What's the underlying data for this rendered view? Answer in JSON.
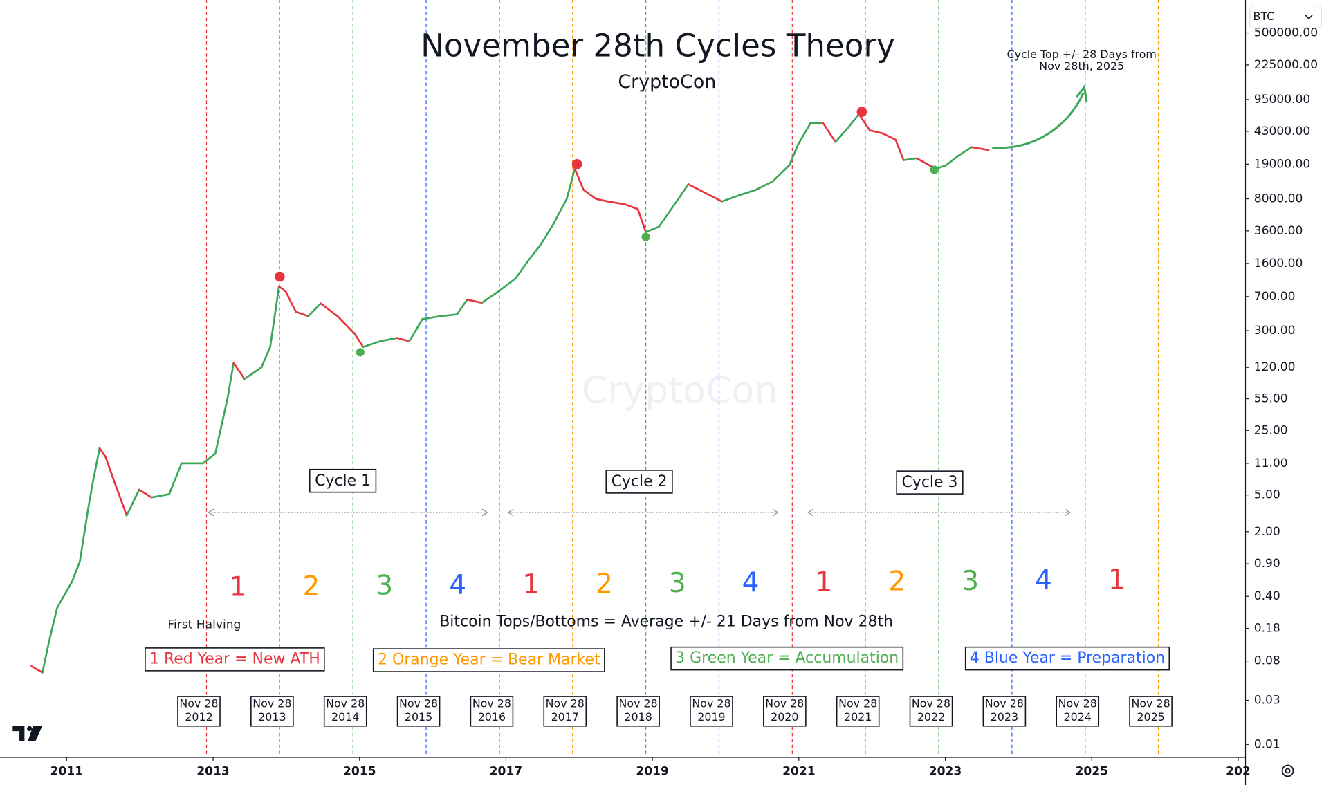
{
  "chart_data": {
    "type": "line",
    "title": "November 28th Cycles Theory",
    "subtitle": "CryptoCon",
    "watermark": "CryptoCon",
    "symbol": "BTC",
    "log_scale": true,
    "xlim": [
      2010.09,
      2027.1
    ],
    "xticks": [
      2011,
      2013,
      2015,
      2017,
      2019,
      2021,
      2023,
      2025,
      {
        "value": 2027,
        "label": "202"
      }
    ],
    "ylim": [
      0.0074,
      1135000
    ],
    "yticks": [
      0.01,
      0.03,
      0.08,
      0.18,
      {
        "value": 0.4,
        "label": "0.40"
      },
      {
        "value": 0.9,
        "label": "0.90"
      },
      {
        "value": 2,
        "label": "2.00"
      },
      {
        "value": 5,
        "label": "5.00"
      },
      {
        "value": 11,
        "label": "11.00"
      },
      {
        "value": 25,
        "label": "25.00"
      },
      {
        "value": 55,
        "label": "55.00"
      },
      {
        "value": 120,
        "label": "120.00"
      },
      {
        "value": 300,
        "label": "300.00"
      },
      {
        "value": 700,
        "label": "700.00"
      },
      {
        "value": 1600,
        "label": "1600.00"
      },
      {
        "value": 3600,
        "label": "3600.00"
      },
      {
        "value": 8000,
        "label": "8000.00"
      },
      {
        "value": 19000,
        "label": "19000.00"
      },
      {
        "value": 43000,
        "label": "43000.00"
      },
      {
        "value": 95000,
        "label": "95000.00"
      },
      {
        "value": 225000,
        "label": "225000.00"
      },
      {
        "value": 500000,
        "label": "500000.00"
      }
    ],
    "x": [
      2010.52,
      2010.67,
      2010.76,
      2010.87,
      2011.07,
      2011.18,
      2011.3,
      2011.36,
      2011.45,
      2011.53,
      2011.65,
      2011.82,
      2011.99,
      2012.16,
      2012.4,
      2012.57,
      2012.86,
      2013.03,
      2013.2,
      2013.28,
      2013.43,
      2013.66,
      2013.78,
      2013.9,
      2013.99,
      2014.13,
      2014.3,
      2014.47,
      2014.7,
      2014.93,
      2015.05,
      2015.28,
      2015.51,
      2015.68,
      2015.86,
      2016.1,
      2016.33,
      2016.47,
      2016.67,
      2016.9,
      2017.13,
      2017.3,
      2017.48,
      2017.65,
      2017.83,
      2017.94,
      2018.06,
      2018.23,
      2018.39,
      2018.62,
      2018.8,
      2018.91,
      2019.09,
      2019.32,
      2019.49,
      2019.72,
      2019.95,
      2020.18,
      2020.41,
      2020.64,
      2020.87,
      2020.99,
      2021.16,
      2021.33,
      2021.5,
      2021.68,
      2021.82,
      2021.97,
      2022.14,
      2022.32,
      2022.43,
      2022.61,
      2022.78,
      2022.87,
      2023.01,
      2023.18,
      2023.36,
      2023.59
    ],
    "series": [
      {
        "up_color": "#3aa757",
        "down_color": "#e8343f",
        "values": [
          0.07,
          0.06,
          0.13,
          0.3,
          0.57,
          0.95,
          3.8,
          7,
          16,
          13,
          7,
          3,
          5.7,
          4.7,
          5.1,
          11,
          11,
          14,
          57,
          134,
          90,
          120,
          200,
          900,
          800,
          480,
          430,
          590,
          430,
          280,
          200,
          230,
          250,
          230,
          400,
          430,
          450,
          650,
          600,
          800,
          1100,
          1700,
          2600,
          4300,
          8000,
          17000,
          10000,
          8000,
          7500,
          7000,
          6200,
          3500,
          4000,
          7300,
          11500,
          9300,
          7500,
          8700,
          10000,
          12300,
          18500,
          31000,
          53000,
          53000,
          33000,
          48000,
          66000,
          44000,
          41000,
          35000,
          21000,
          22000,
          18500,
          16800,
          18500,
          23500,
          29000,
          27000
        ]
      }
    ],
    "extremes": [
      {
        "color": "#e8343f",
        "x": [
          2013.91,
          2017.97,
          2021.86
        ],
        "values": [
          1150,
          19000,
          70000
        ]
      },
      {
        "color": "#4caf50",
        "x": [
          2015.01,
          2018.91,
          2022.85
        ],
        "values": [
          175,
          3100,
          16500
        ]
      }
    ],
    "year_colors": [
      "#e8343f",
      "#ff9800",
      "#4caf50",
      "#2962ff"
    ],
    "nov28_lines": {
      "x": [
        2012.91,
        2013.91,
        2014.91,
        2015.91,
        2016.91,
        2017.91,
        2018.91,
        2019.91,
        2020.91,
        2021.91,
        2022.91,
        2023.91,
        2024.91,
        2025.91
      ],
      "labels": [
        [
          "Nov 28",
          "2012"
        ],
        [
          "Nov 28",
          "2013"
        ],
        [
          "Nov 28",
          "2014"
        ],
        [
          "Nov 28",
          "2015"
        ],
        [
          "Nov 28",
          "2016"
        ],
        [
          "Nov 28",
          "2017"
        ],
        [
          "Nov 28",
          "2018"
        ],
        [
          "Nov 28",
          "2019"
        ],
        [
          "Nov 28",
          "2020"
        ],
        [
          "Nov 28",
          "2021"
        ],
        [
          "Nov 28",
          "2022"
        ],
        [
          "Nov 28",
          "2023"
        ],
        [
          "Nov 28",
          "2024"
        ],
        [
          "Nov 28",
          "2025"
        ]
      ]
    },
    "year_numbers": [
      "1",
      "2",
      "3",
      "4",
      "1",
      "2",
      "3",
      "4",
      "1",
      "2",
      "3",
      "4",
      "1"
    ],
    "cycles": [
      "Cycle 1",
      "Cycle 2",
      "Cycle 3"
    ],
    "legend": [
      "1 Red Year = New ATH",
      "2 Orange Year = Bear Market",
      "3 Green Year = Accumulation",
      "4 Blue Year = Preparation"
    ],
    "annotations": {
      "halving": "First Halving",
      "rule": "Bitcoin Tops/Bottoms = Average +/- 21 Days from Nov 28th",
      "target": [
        "Cycle Top +/- 28 Days from",
        "Nov 28th, 2025"
      ]
    }
  }
}
